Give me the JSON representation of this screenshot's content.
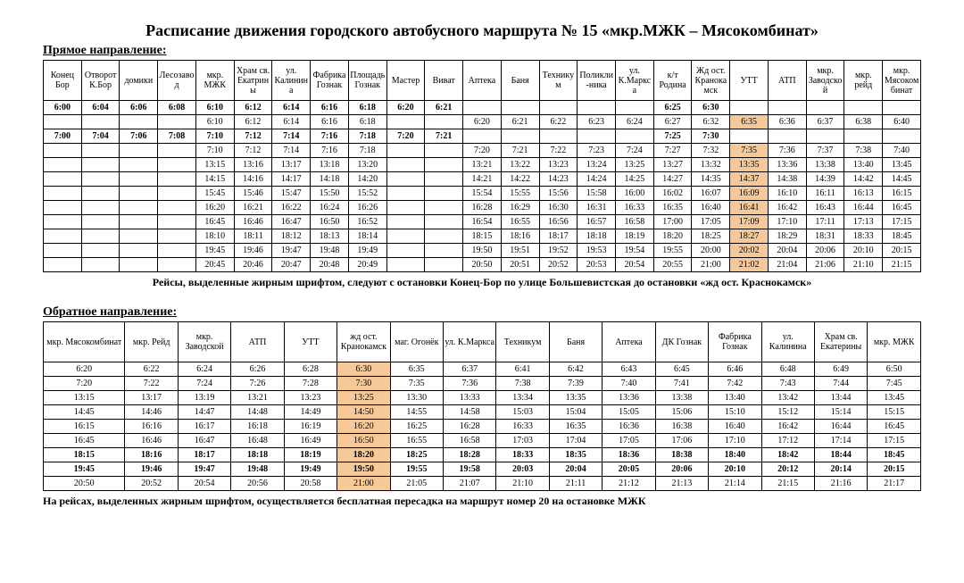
{
  "title": "Расписание движения городского автобусного маршрута № 15 «мкр.МЖК – Мясокомбинат»",
  "forward": {
    "label": "Прямое направление:",
    "highlight_col": 18,
    "columns": [
      "Конец Бор",
      "Отворот К.Бор",
      "домики",
      "Лесозавод",
      "мкр. МЖК",
      "Храм св. Екатрины",
      "ул. Калинина",
      "Фабрика Гознак",
      "Площадь Гознак",
      "Мастер",
      "Виват",
      "Аптека",
      "Баня",
      "Техникум",
      "Поликли-ника",
      "ул. К.Маркса",
      "к/т Родина",
      "Жд ост. Кранокамск",
      "УТТ",
      "АТП",
      "мкр. Заводской",
      "мкр. рейд",
      "мкр. Мясокомбинат"
    ],
    "rows": [
      {
        "bold": true,
        "cells": [
          "6:00",
          "6:04",
          "6:06",
          "6:08",
          "6:10",
          "6:12",
          "6:14",
          "6:16",
          "6:18",
          "6:20",
          "6:21",
          "",
          "",
          "",
          "",
          "",
          "6:25",
          "6:30",
          "",
          "",
          "",
          "",
          ""
        ]
      },
      {
        "bold": false,
        "cells": [
          "",
          "",
          "",
          "",
          "6:10",
          "6:12",
          "6:14",
          "6:16",
          "6:18",
          "",
          "",
          "6:20",
          "6:21",
          "6:22",
          "6:23",
          "6:24",
          "6:27",
          "6:32",
          "6:35",
          "6:36",
          "6:37",
          "6:38",
          "6:40"
        ]
      },
      {
        "bold": true,
        "cells": [
          "7:00",
          "7:04",
          "7:06",
          "7:08",
          "7:10",
          "7:12",
          "7:14",
          "7:16",
          "7:18",
          "7:20",
          "7:21",
          "",
          "",
          "",
          "",
          "",
          "7:25",
          "7:30",
          "",
          "",
          "",
          "",
          ""
        ]
      },
      {
        "bold": false,
        "cells": [
          "",
          "",
          "",
          "",
          "7:10",
          "7:12",
          "7:14",
          "7:16",
          "7:18",
          "",
          "",
          "7:20",
          "7:21",
          "7:22",
          "7:23",
          "7:24",
          "7:27",
          "7:32",
          "7:35",
          "7:36",
          "7:37",
          "7:38",
          "7:40"
        ]
      },
      {
        "bold": false,
        "cells": [
          "",
          "",
          "",
          "",
          "13:15",
          "13:16",
          "13:17",
          "13:18",
          "13:20",
          "",
          "",
          "13:21",
          "13:22",
          "13:23",
          "13:24",
          "13:25",
          "13:27",
          "13:32",
          "13:35",
          "13:36",
          "13:38",
          "13:40",
          "13:45"
        ]
      },
      {
        "bold": false,
        "cells": [
          "",
          "",
          "",
          "",
          "14:15",
          "14:16",
          "14:17",
          "14:18",
          "14:20",
          "",
          "",
          "14:21",
          "14:22",
          "14:23",
          "14:24",
          "14:25",
          "14:27",
          "14:35",
          "14:37",
          "14:38",
          "14:39",
          "14:42",
          "14:45"
        ]
      },
      {
        "bold": false,
        "cells": [
          "",
          "",
          "",
          "",
          "15:45",
          "15:46",
          "15:47",
          "15:50",
          "15:52",
          "",
          "",
          "15:54",
          "15:55",
          "15:56",
          "15:58",
          "16:00",
          "16:02",
          "16:07",
          "16:09",
          "16:10",
          "16:11",
          "16:13",
          "16:15"
        ]
      },
      {
        "bold": false,
        "cells": [
          "",
          "",
          "",
          "",
          "16:20",
          "16:21",
          "16:22",
          "16:24",
          "16:26",
          "",
          "",
          "16:28",
          "16:29",
          "16:30",
          "16:31",
          "16:33",
          "16:35",
          "16:40",
          "16:41",
          "16:42",
          "16:43",
          "16:44",
          "16:45"
        ]
      },
      {
        "bold": false,
        "cells": [
          "",
          "",
          "",
          "",
          "16:45",
          "16:46",
          "16:47",
          "16:50",
          "16:52",
          "",
          "",
          "16:54",
          "16:55",
          "16:56",
          "16:57",
          "16:58",
          "17:00",
          "17:05",
          "17:09",
          "17:10",
          "17:11",
          "17:13",
          "17:15"
        ]
      },
      {
        "bold": false,
        "cells": [
          "",
          "",
          "",
          "",
          "18:10",
          "18:11",
          "18:12",
          "18:13",
          "18:14",
          "",
          "",
          "18:15",
          "18:16",
          "18:17",
          "18:18",
          "18:19",
          "18:20",
          "18:25",
          "18:27",
          "18:29",
          "18:31",
          "18:33",
          "18:45"
        ]
      },
      {
        "bold": false,
        "cells": [
          "",
          "",
          "",
          "",
          "19:45",
          "19:46",
          "19:47",
          "19:48",
          "19:49",
          "",
          "",
          "19:50",
          "19:51",
          "19:52",
          "19:53",
          "19:54",
          "19:55",
          "20:00",
          "20:02",
          "20:04",
          "20:06",
          "20:10",
          "20:15"
        ]
      },
      {
        "bold": false,
        "cells": [
          "",
          "",
          "",
          "",
          "20:45",
          "20:46",
          "20:47",
          "20:48",
          "20:49",
          "",
          "",
          "20:50",
          "20:51",
          "20:52",
          "20:53",
          "20:54",
          "20:55",
          "21:00",
          "21:02",
          "21:04",
          "21:06",
          "21:10",
          "21:15"
        ]
      }
    ],
    "note": "Рейсы, выделенные жирным шрифтом, следуют с остановки Конец-Бор по улице Большевистская до остановки «жд ост. Краснокамск»"
  },
  "backward": {
    "label": "Обратное направление:",
    "highlight_col": 5,
    "columns": [
      "мкр. Мясокомбинат",
      "мкр. Рейд",
      "мкр. Заводской",
      "АТП",
      "УТТ",
      "жд ост. Кранокамск",
      "маг. Огонёк",
      "ул. К.Маркса",
      "Техникум",
      "Баня",
      "Аптека",
      "ДК Гознак",
      "Фабрика Гознак",
      "ул. Калинина",
      "Храм св. Екатерины",
      "мкр. МЖК"
    ],
    "rows": [
      {
        "bold": false,
        "cells": [
          "6:20",
          "6:22",
          "6:24",
          "6:26",
          "6:28",
          "6:30",
          "6:35",
          "6:37",
          "6:41",
          "6:42",
          "6:43",
          "6:45",
          "6:46",
          "6:48",
          "6:49",
          "6:50"
        ]
      },
      {
        "bold": false,
        "cells": [
          "7:20",
          "7:22",
          "7:24",
          "7:26",
          "7:28",
          "7:30",
          "7:35",
          "7:36",
          "7:38",
          "7:39",
          "7:40",
          "7:41",
          "7:42",
          "7:43",
          "7:44",
          "7:45"
        ]
      },
      {
        "bold": false,
        "cells": [
          "13:15",
          "13:17",
          "13:19",
          "13:21",
          "13:23",
          "13:25",
          "13:30",
          "13:33",
          "13:34",
          "13:35",
          "13:36",
          "13:38",
          "13:40",
          "13:42",
          "13:44",
          "13:45"
        ]
      },
      {
        "bold": false,
        "cells": [
          "14:45",
          "14:46",
          "14:47",
          "14:48",
          "14:49",
          "14:50",
          "14:55",
          "14:58",
          "15:03",
          "15:04",
          "15:05",
          "15:06",
          "15:10",
          "15:12",
          "15:14",
          "15:15"
        ]
      },
      {
        "bold": false,
        "cells": [
          "16:15",
          "16:16",
          "16:17",
          "16:18",
          "16:19",
          "16:20",
          "16:25",
          "16:28",
          "16:33",
          "16:35",
          "16:36",
          "16:38",
          "16:40",
          "16:42",
          "16:44",
          "16:45"
        ]
      },
      {
        "bold": false,
        "cells": [
          "16:45",
          "16:46",
          "16:47",
          "16:48",
          "16:49",
          "16:50",
          "16:55",
          "16:58",
          "17:03",
          "17:04",
          "17:05",
          "17:06",
          "17:10",
          "17:12",
          "17:14",
          "17:15"
        ]
      },
      {
        "bold": true,
        "cells": [
          "18:15",
          "18:16",
          "18:17",
          "18:18",
          "18:19",
          "18:20",
          "18:25",
          "18:28",
          "18:33",
          "18:35",
          "18:36",
          "18:38",
          "18:40",
          "18:42",
          "18:44",
          "18:45"
        ]
      },
      {
        "bold": true,
        "cells": [
          "19:45",
          "19:46",
          "19:47",
          "19:48",
          "19:49",
          "19:50",
          "19:55",
          "19:58",
          "20:03",
          "20:04",
          "20:05",
          "20:06",
          "20:10",
          "20:12",
          "20:14",
          "20:15"
        ]
      },
      {
        "bold": false,
        "cells": [
          "20:50",
          "20:52",
          "20:54",
          "20:56",
          "20:58",
          "21:00",
          "21:05",
          "21:07",
          "21:10",
          "21:11",
          "21:12",
          "21:13",
          "21:14",
          "21:15",
          "21:16",
          "21:17"
        ]
      }
    ],
    "note": "На рейсах, выделенных жирным шрифтом, осуществляется бесплатная пересадка на маршрут номер 20 на остановке МЖК"
  }
}
